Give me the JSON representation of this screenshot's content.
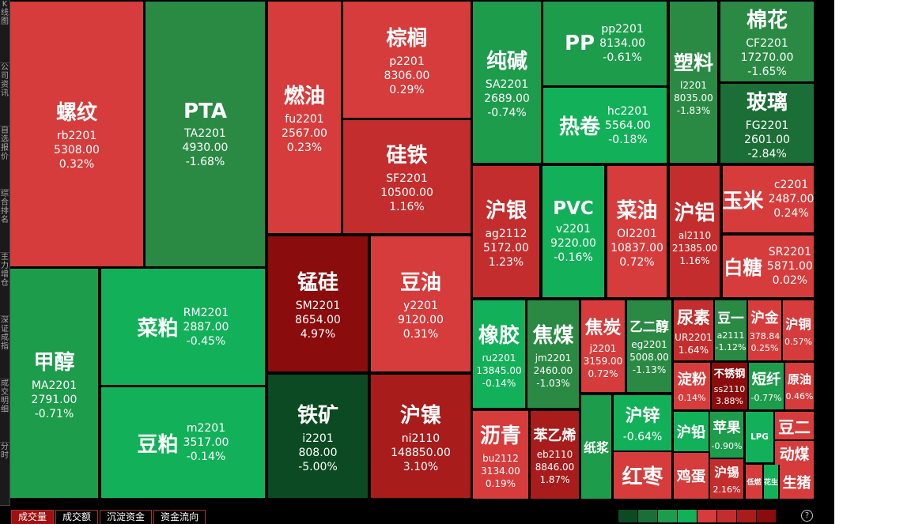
{
  "sidebar": [
    "K线图",
    "公司资讯",
    "自选报价",
    "综合排名",
    "主力增仓",
    "深证成指",
    "成交明细",
    "分时"
  ],
  "tabs": [
    "成交量",
    "成交额",
    "沉淀资金",
    "资金流向"
  ],
  "help": "?",
  "tiles": [
    {
      "name": "螺纹",
      "code": "rb2201",
      "price": "5308.00",
      "change": "0.32%"
    },
    {
      "name": "PTA",
      "code": "TA2201",
      "price": "4930.00",
      "change": "-1.68%"
    },
    {
      "name": "甲醇",
      "code": "MA2201",
      "price": "2791.00",
      "change": "-0.71%"
    },
    {
      "name": "菜粕",
      "code": "RM2201",
      "price": "2887.00",
      "change": "-0.45%"
    },
    {
      "name": "豆粕",
      "code": "m2201",
      "price": "3517.00",
      "change": "-0.14%"
    },
    {
      "name": "燃油",
      "code": "fu2201",
      "price": "2567.00",
      "change": "0.23%"
    },
    {
      "name": "棕榈",
      "code": "p2201",
      "price": "8306.00",
      "change": "0.29%"
    },
    {
      "name": "硅铁",
      "code": "SF2201",
      "price": "10500.00",
      "change": "1.16%"
    },
    {
      "name": "锰硅",
      "code": "SM2201",
      "price": "8654.00",
      "change": "4.97%"
    },
    {
      "name": "豆油",
      "code": "y2201",
      "price": "9120.00",
      "change": "0.31%"
    },
    {
      "name": "铁矿",
      "code": "i2201",
      "price": "808.00",
      "change": "-5.00%"
    },
    {
      "name": "沪镍",
      "code": "ni2110",
      "price": "148850.00",
      "change": "3.10%"
    },
    {
      "name": "纯碱",
      "code": "SA2201",
      "price": "2689.00",
      "change": "-0.74%"
    },
    {
      "name": "PP",
      "code": "pp2201",
      "price": "8134.00",
      "change": "-0.61%"
    },
    {
      "name": "热卷",
      "code": "hc2201",
      "price": "5564.00",
      "change": "-0.18%"
    },
    {
      "name": "塑料",
      "code": "l2201",
      "price": "8035.00",
      "change": "-1.83%"
    },
    {
      "name": "棉花",
      "code": "CF2201",
      "price": "17270.00",
      "change": "-1.65%"
    },
    {
      "name": "玻璃",
      "code": "FG2201",
      "price": "2601.00",
      "change": "-2.84%"
    },
    {
      "name": "沪银",
      "code": "ag2112",
      "price": "5172.00",
      "change": "1.23%"
    },
    {
      "name": "PVC",
      "code": "v2201",
      "price": "9220.00",
      "change": "-0.16%"
    },
    {
      "name": "菜油",
      "code": "OI2201",
      "price": "10837.00",
      "change": "0.72%"
    },
    {
      "name": "沪铝",
      "code": "al2110",
      "price": "21385.00",
      "change": "1.16%"
    },
    {
      "name": "玉米",
      "code": "c2201",
      "price": "2487.00",
      "change": "0.24%"
    },
    {
      "name": "白糖",
      "code": "SR2201",
      "price": "5871.00",
      "change": "0.02%"
    },
    {
      "name": "橡胶",
      "code": "ru2201",
      "price": "13845.00",
      "change": "-0.14%"
    },
    {
      "name": "焦煤",
      "code": "jm2201",
      "price": "2460.00",
      "change": "-1.03%"
    },
    {
      "name": "焦炭",
      "code": "j2201",
      "price": "3159.00",
      "change": "0.72%"
    },
    {
      "name": "乙二醇",
      "code": "eg2201",
      "price": "5008.00",
      "change": "-1.13%"
    },
    {
      "name": "尿素",
      "code": "UR2201",
      "change": "1.64%"
    },
    {
      "name": "豆一",
      "code": "a2111",
      "change": "-1.12%"
    },
    {
      "name": "沪金",
      "price": "378.84",
      "change": "0.25%"
    },
    {
      "name": "沪铜",
      "change": "0.57%"
    },
    {
      "name": "淀粉",
      "change": "0.14%"
    },
    {
      "name": "不锈钢",
      "code": "ss2110",
      "change": "3.88%"
    },
    {
      "name": "短纤",
      "change": "-0.77%"
    },
    {
      "name": "原油",
      "change": "0.46%"
    },
    {
      "name": "沥青",
      "code": "bu2112",
      "price": "3134.00",
      "change": "0.19%"
    },
    {
      "name": "苯乙烯",
      "code": "eb2110",
      "price": "8846.00",
      "change": "1.87%"
    },
    {
      "name": "纸浆"
    },
    {
      "name": "沪锌",
      "change": "-0.64%"
    },
    {
      "name": "红枣"
    },
    {
      "name": "沪铅"
    },
    {
      "name": "鸡蛋"
    },
    {
      "name": "苹果",
      "change": "-0.90%"
    },
    {
      "name": "沪锡",
      "change": "2.16%"
    },
    {
      "name": "LPG"
    },
    {
      "name": "豆二"
    },
    {
      "name": "动煤"
    },
    {
      "name": "低燃"
    },
    {
      "name": "花生"
    },
    {
      "name": "生猪"
    }
  ]
}
